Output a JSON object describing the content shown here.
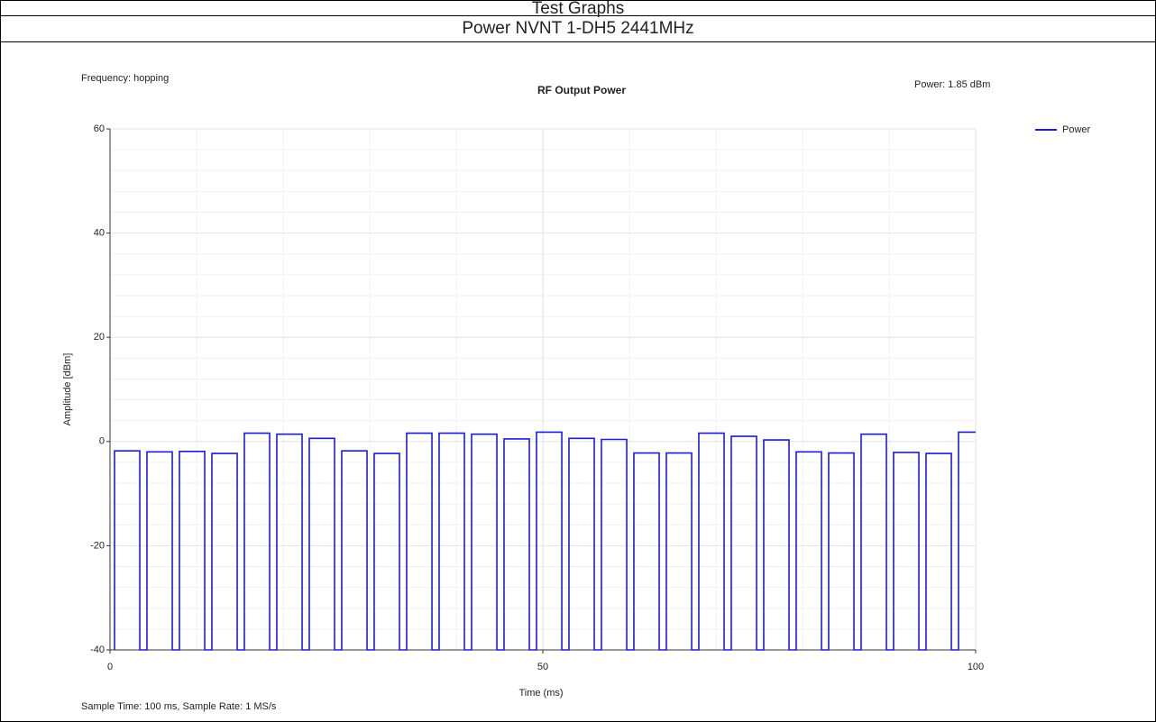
{
  "header": {
    "title": "Test Graphs",
    "subtitle": "Power NVNT 1-DH5 2441MHz"
  },
  "chart_data": {
    "type": "line",
    "title": "RF Output Power",
    "annotations": [
      "Frequency: hopping",
      "Power: 1.85 dBm"
    ],
    "footer": "Sample Time: 100 ms,  Sample Rate: 1 MS/s",
    "xlabel": "Time (ms)",
    "ylabel": "Amplitude [dBm]",
    "xlim": [
      0,
      100
    ],
    "ylim": [
      -40,
      60
    ],
    "xticks": [
      0,
      50,
      100
    ],
    "yticks": [
      -40,
      -20,
      0,
      20,
      40,
      60
    ],
    "grid": true,
    "legend": "top-right",
    "x": [
      0.52,
      0.52,
      3.44,
      3.44,
      4.27,
      4.27,
      7.19,
      7.19,
      8.02,
      8.02,
      10.94,
      10.94,
      11.77,
      11.77,
      14.69,
      14.69,
      15.52,
      15.52,
      18.44,
      18.44,
      19.27,
      19.27,
      22.19,
      22.19,
      23.02,
      23.02,
      25.94,
      25.94,
      26.77,
      26.77,
      29.69,
      29.69,
      30.52,
      30.52,
      33.44,
      33.44,
      34.27,
      34.27,
      37.19,
      37.19,
      38.02,
      38.02,
      40.94,
      40.94,
      41.77,
      41.77,
      44.69,
      44.69,
      45.52,
      45.52,
      48.44,
      48.44,
      49.27,
      49.27,
      52.19,
      52.19,
      53.02,
      53.02,
      55.94,
      55.94,
      56.77,
      56.77,
      59.69,
      59.69,
      60.52,
      60.52,
      63.44,
      63.44,
      64.27,
      64.27,
      67.19,
      67.19,
      68.02,
      68.02,
      70.94,
      70.94,
      71.77,
      71.77,
      74.69,
      74.69,
      75.52,
      75.52,
      78.44,
      78.44,
      79.27,
      79.27,
      82.19,
      82.19,
      83.02,
      83.02,
      85.94,
      85.94,
      86.77,
      86.77,
      89.69,
      89.69,
      90.52,
      90.52,
      93.44,
      93.44,
      94.27,
      94.27,
      97.19,
      97.19,
      98.02,
      98.02,
      100
    ],
    "series": [
      {
        "name": "Power",
        "color": "#1c1cdc",
        "values": [
          -40,
          -1.8,
          -1.8,
          -40,
          -40,
          -2.0,
          -2.0,
          -40,
          -40,
          -1.9,
          -1.9,
          -40,
          -40,
          -2.3,
          -2.3,
          -40,
          -40,
          1.6,
          1.6,
          -40,
          -40,
          1.4,
          1.4,
          -40,
          -40,
          0.6,
          0.6,
          -40,
          -40,
          -1.8,
          -1.8,
          -40,
          -40,
          -2.3,
          -2.3,
          -40,
          -40,
          1.6,
          1.6,
          -40,
          -40,
          1.6,
          1.6,
          -40,
          -40,
          1.4,
          1.4,
          -40,
          -40,
          0.5,
          0.5,
          -40,
          -40,
          1.8,
          1.8,
          -40,
          -40,
          0.6,
          0.6,
          -40,
          -40,
          0.4,
          0.4,
          -40,
          -40,
          -2.2,
          -2.2,
          -40,
          -40,
          -2.2,
          -2.2,
          -40,
          -40,
          1.6,
          1.6,
          -40,
          -40,
          1.0,
          1.0,
          -40,
          -40,
          0.3,
          0.3,
          -40,
          -40,
          -2.0,
          -2.0,
          -40,
          -40,
          -2.2,
          -2.2,
          -40,
          -40,
          1.4,
          1.4,
          -40,
          -40,
          -2.1,
          -2.1,
          -40,
          -40,
          -2.3,
          -2.3,
          -40,
          -40,
          1.8,
          1.8
        ]
      }
    ]
  }
}
